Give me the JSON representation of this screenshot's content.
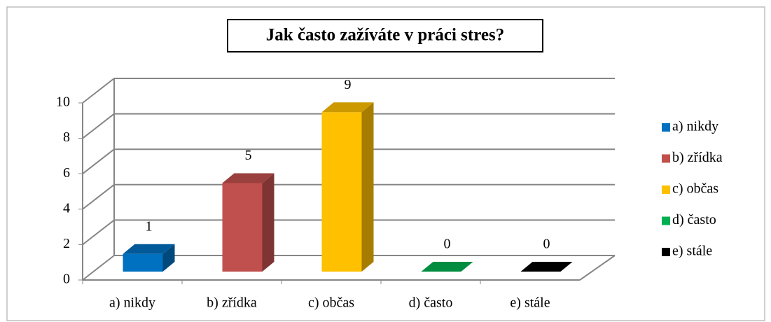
{
  "chart_data": {
    "type": "bar3d",
    "title": "Jak často zažíváte v práci stres?",
    "categories": [
      "a) nikdy",
      "b) zřídka",
      "c) občas",
      "d) často",
      "e) stále"
    ],
    "values": [
      1,
      5,
      9,
      0,
      0
    ],
    "colors": [
      "#0070c0",
      "#c0504d",
      "#ffc000",
      "#00b050",
      "#000000"
    ],
    "ylim": [
      0,
      10
    ],
    "yticks": [
      0,
      2,
      4,
      6,
      8,
      10
    ],
    "grid": true,
    "legend": "right"
  }
}
